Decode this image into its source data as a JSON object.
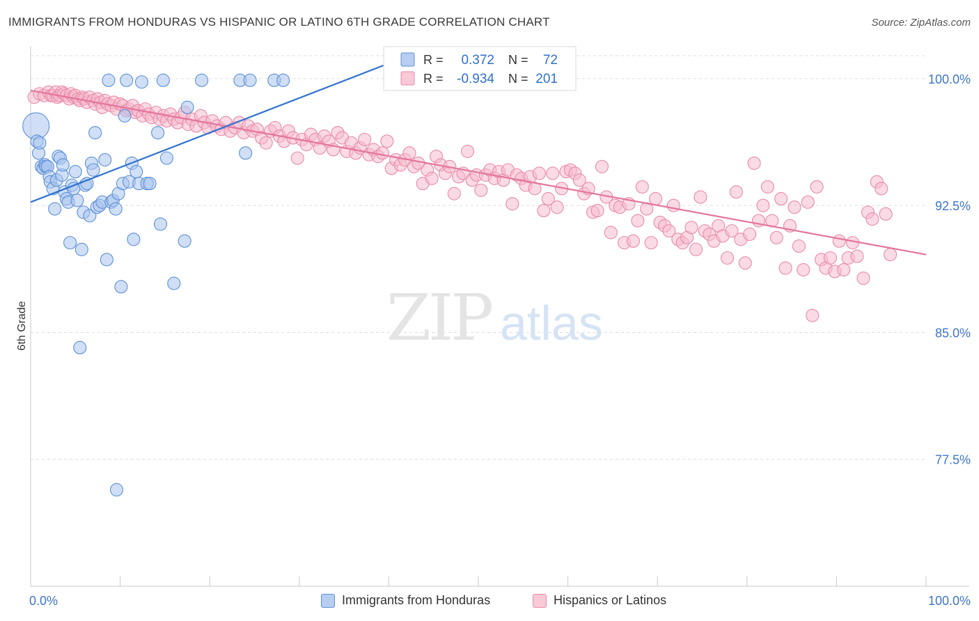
{
  "title": "IMMIGRANTS FROM HONDURAS VS HISPANIC OR LATINO 6TH GRADE CORRELATION CHART",
  "source": "Source: ZipAtlas.com",
  "watermark": {
    "zip": "ZIP",
    "atlas": "atlas"
  },
  "colors": {
    "blue_fill": "#a9c4ee",
    "blue_stroke": "#5b8fd6",
    "blue_line": "#2f72d0",
    "pink_fill": "#f6bccd",
    "pink_stroke": "#e98aa8",
    "pink_line": "#e4759c",
    "grid": "#dcdcdc",
    "tick_text": "#3e74c9"
  },
  "legend_box": {
    "rows": [
      {
        "r_label": "R =",
        "r_value": "0.372",
        "n_label": "N =",
        "n_value": "72"
      },
      {
        "r_label": "R =",
        "r_value": "-0.934",
        "n_label": "N =",
        "n_value": "201"
      }
    ]
  },
  "chart_data": {
    "type": "scatter",
    "title": "IMMIGRANTS FROM HONDURAS VS HISPANIC OR LATINO 6TH GRADE CORRELATION CHART",
    "xlabel": "",
    "ylabel": "6th Grade",
    "xlim": [
      0,
      100
    ],
    "ylim": [
      70.0,
      101.6
    ],
    "x_tick_labels": [
      "0.0%",
      "100.0%"
    ],
    "y_ticks": [
      77.5,
      85.0,
      92.5,
      100.0
    ],
    "y_tick_labels": [
      "77.5%",
      "85.0%",
      "92.5%",
      "100.0%"
    ],
    "grid": true,
    "legend_placement": "bottom",
    "series": [
      {
        "name": "Immigrants from Honduras",
        "color": "#5b8fd6",
        "trend": {
          "x": [
            0,
            40
          ],
          "y": [
            92.7,
            100.9
          ]
        },
        "points": [
          [
            0.6,
            97.2
          ],
          [
            0.7,
            96.3
          ],
          [
            0.9,
            95.6
          ],
          [
            1.0,
            96.2
          ],
          [
            1.2,
            94.8
          ],
          [
            1.4,
            94.7
          ],
          [
            1.6,
            94.9
          ],
          [
            1.7,
            94.8
          ],
          [
            1.9,
            94.8
          ],
          [
            2.1,
            94.2
          ],
          [
            2.2,
            93.9
          ],
          [
            2.5,
            93.5
          ],
          [
            2.7,
            92.3
          ],
          [
            2.9,
            94.0
          ],
          [
            3.1,
            95.4
          ],
          [
            3.3,
            95.3
          ],
          [
            3.5,
            94.3
          ],
          [
            3.6,
            94.9
          ],
          [
            3.8,
            93.3
          ],
          [
            4.0,
            92.9
          ],
          [
            4.2,
            92.7
          ],
          [
            4.4,
            90.3
          ],
          [
            4.6,
            93.7
          ],
          [
            4.8,
            93.5
          ],
          [
            5.0,
            94.5
          ],
          [
            5.2,
            92.8
          ],
          [
            5.5,
            84.1
          ],
          [
            5.7,
            89.9
          ],
          [
            5.9,
            92.1
          ],
          [
            6.1,
            93.7
          ],
          [
            6.3,
            93.8
          ],
          [
            6.6,
            91.9
          ],
          [
            6.8,
            95.0
          ],
          [
            7.0,
            94.6
          ],
          [
            7.2,
            96.8
          ],
          [
            7.4,
            92.4
          ],
          [
            7.7,
            92.5
          ],
          [
            8.0,
            92.7
          ],
          [
            8.3,
            95.2
          ],
          [
            8.5,
            89.3
          ],
          [
            8.7,
            99.9
          ],
          [
            9.0,
            92.7
          ],
          [
            9.2,
            92.8
          ],
          [
            9.5,
            92.3
          ],
          [
            9.6,
            75.7
          ],
          [
            9.8,
            93.2
          ],
          [
            10.1,
            87.7
          ],
          [
            10.3,
            93.8
          ],
          [
            10.5,
            97.8
          ],
          [
            10.7,
            99.9
          ],
          [
            11.0,
            93.9
          ],
          [
            11.3,
            95.0
          ],
          [
            11.5,
            90.5
          ],
          [
            11.8,
            94.5
          ],
          [
            12.1,
            93.8
          ],
          [
            12.4,
            99.8
          ],
          [
            13.0,
            93.8
          ],
          [
            13.3,
            93.8
          ],
          [
            14.2,
            96.8
          ],
          [
            14.5,
            91.4
          ],
          [
            14.8,
            99.9
          ],
          [
            15.2,
            95.3
          ],
          [
            16.0,
            87.9
          ],
          [
            17.2,
            90.4
          ],
          [
            17.5,
            98.3
          ],
          [
            19.1,
            99.9
          ],
          [
            23.4,
            99.9
          ],
          [
            24.0,
            95.6
          ],
          [
            24.5,
            99.9
          ],
          [
            27.2,
            99.9
          ],
          [
            28.2,
            99.9
          ],
          [
            40.5,
            99.9
          ]
        ]
      },
      {
        "name": "Hispanics or Latinos",
        "color": "#e98aa8",
        "trend": {
          "x": [
            0,
            100
          ],
          "y": [
            99.3,
            89.6
          ]
        },
        "points": [
          [
            0.4,
            98.9
          ],
          [
            1.0,
            99.1
          ],
          [
            1.5,
            99.0
          ],
          [
            2.0,
            99.2
          ],
          [
            2.3,
            99.0
          ],
          [
            2.5,
            99.0
          ],
          [
            2.8,
            99.2
          ],
          [
            3.0,
            98.9
          ],
          [
            3.2,
            99.0
          ],
          [
            3.5,
            99.2
          ],
          [
            3.7,
            99.1
          ],
          [
            4.0,
            99.0
          ],
          [
            4.3,
            98.8
          ],
          [
            4.5,
            99.1
          ],
          [
            4.8,
            98.9
          ],
          [
            5.0,
            99.0
          ],
          [
            5.3,
            98.8
          ],
          [
            5.5,
            98.7
          ],
          [
            5.8,
            98.9
          ],
          [
            6.0,
            98.8
          ],
          [
            6.3,
            98.6
          ],
          [
            6.6,
            98.9
          ],
          [
            7.0,
            98.7
          ],
          [
            7.2,
            98.5
          ],
          [
            7.5,
            98.8
          ],
          [
            7.8,
            98.6
          ],
          [
            8.0,
            98.3
          ],
          [
            8.3,
            98.7
          ],
          [
            8.6,
            98.5
          ],
          [
            9.0,
            98.4
          ],
          [
            9.3,
            98.6
          ],
          [
            9.6,
            98.2
          ],
          [
            10.0,
            98.5
          ],
          [
            10.3,
            98.4
          ],
          [
            10.7,
            98.1
          ],
          [
            11.0,
            98.2
          ],
          [
            11.4,
            98.4
          ],
          [
            11.7,
            98.0
          ],
          [
            12.0,
            98.1
          ],
          [
            12.5,
            97.8
          ],
          [
            12.8,
            98.2
          ],
          [
            13.2,
            97.9
          ],
          [
            13.5,
            97.7
          ],
          [
            14.0,
            98.0
          ],
          [
            14.4,
            97.6
          ],
          [
            14.8,
            97.8
          ],
          [
            15.2,
            97.5
          ],
          [
            15.6,
            97.9
          ],
          [
            16.0,
            97.6
          ],
          [
            16.4,
            97.4
          ],
          [
            16.8,
            97.7
          ],
          [
            17.2,
            98.0
          ],
          [
            17.6,
            97.3
          ],
          [
            18.0,
            97.6
          ],
          [
            18.5,
            97.2
          ],
          [
            19.0,
            97.8
          ],
          [
            19.4,
            97.4
          ],
          [
            19.8,
            97.1
          ],
          [
            20.3,
            97.5
          ],
          [
            20.8,
            97.2
          ],
          [
            21.3,
            97.0
          ],
          [
            21.8,
            97.4
          ],
          [
            22.3,
            96.9
          ],
          [
            22.8,
            97.1
          ],
          [
            23.3,
            97.4
          ],
          [
            23.8,
            96.8
          ],
          [
            24.3,
            97.2
          ],
          [
            24.8,
            96.9
          ],
          [
            25.3,
            97.0
          ],
          [
            25.8,
            96.5
          ],
          [
            26.3,
            96.2
          ],
          [
            26.8,
            96.9
          ],
          [
            27.3,
            97.1
          ],
          [
            27.8,
            96.6
          ],
          [
            28.3,
            96.3
          ],
          [
            28.8,
            96.9
          ],
          [
            29.3,
            96.5
          ],
          [
            29.8,
            95.3
          ],
          [
            30.3,
            96.4
          ],
          [
            30.8,
            96.1
          ],
          [
            31.3,
            96.7
          ],
          [
            31.8,
            96.4
          ],
          [
            32.3,
            95.9
          ],
          [
            32.8,
            96.6
          ],
          [
            33.3,
            96.3
          ],
          [
            33.8,
            95.8
          ],
          [
            34.3,
            96.8
          ],
          [
            34.8,
            96.5
          ],
          [
            35.3,
            95.7
          ],
          [
            35.8,
            96.2
          ],
          [
            36.3,
            95.6
          ],
          [
            36.8,
            95.9
          ],
          [
            37.3,
            96.4
          ],
          [
            37.8,
            95.5
          ],
          [
            38.3,
            95.8
          ],
          [
            38.8,
            95.4
          ],
          [
            39.3,
            95.6
          ],
          [
            39.8,
            96.3
          ],
          [
            40.3,
            94.7
          ],
          [
            40.8,
            95.2
          ],
          [
            41.3,
            94.9
          ],
          [
            41.8,
            95.2
          ],
          [
            42.3,
            95.6
          ],
          [
            42.8,
            94.8
          ],
          [
            43.3,
            95.0
          ],
          [
            43.8,
            93.8
          ],
          [
            44.3,
            94.6
          ],
          [
            44.8,
            94.1
          ],
          [
            45.3,
            95.4
          ],
          [
            45.8,
            94.9
          ],
          [
            46.3,
            94.4
          ],
          [
            46.8,
            94.8
          ],
          [
            47.3,
            93.2
          ],
          [
            47.8,
            94.2
          ],
          [
            48.3,
            94.4
          ],
          [
            48.8,
            95.7
          ],
          [
            49.3,
            94.0
          ],
          [
            49.8,
            94.3
          ],
          [
            50.3,
            93.4
          ],
          [
            50.8,
            94.3
          ],
          [
            51.3,
            94.6
          ],
          [
            51.8,
            94.1
          ],
          [
            52.3,
            94.5
          ],
          [
            52.8,
            94.0
          ],
          [
            53.3,
            94.6
          ],
          [
            53.8,
            92.6
          ],
          [
            54.3,
            94.3
          ],
          [
            54.8,
            94.1
          ],
          [
            55.3,
            93.7
          ],
          [
            55.8,
            94.2
          ],
          [
            56.3,
            93.5
          ],
          [
            56.8,
            94.4
          ],
          [
            57.3,
            92.2
          ],
          [
            57.8,
            92.9
          ],
          [
            58.3,
            94.4
          ],
          [
            58.8,
            92.4
          ],
          [
            59.3,
            93.5
          ],
          [
            59.8,
            94.5
          ],
          [
            60.3,
            94.6
          ],
          [
            60.8,
            94.4
          ],
          [
            61.3,
            94.0
          ],
          [
            61.8,
            93.2
          ],
          [
            62.3,
            93.5
          ],
          [
            62.8,
            92.1
          ],
          [
            63.3,
            92.2
          ],
          [
            63.8,
            94.8
          ],
          [
            64.3,
            93.0
          ],
          [
            64.8,
            90.9
          ],
          [
            65.3,
            92.5
          ],
          [
            65.8,
            92.4
          ],
          [
            66.3,
            90.3
          ],
          [
            66.8,
            92.6
          ],
          [
            67.3,
            90.4
          ],
          [
            67.8,
            91.6
          ],
          [
            68.3,
            93.6
          ],
          [
            68.8,
            92.3
          ],
          [
            69.3,
            90.3
          ],
          [
            69.8,
            92.9
          ],
          [
            70.3,
            91.5
          ],
          [
            70.8,
            91.3
          ],
          [
            71.3,
            91.0
          ],
          [
            71.8,
            92.5
          ],
          [
            72.3,
            90.5
          ],
          [
            72.8,
            90.3
          ],
          [
            73.3,
            90.6
          ],
          [
            73.8,
            91.2
          ],
          [
            74.3,
            89.9
          ],
          [
            74.8,
            93.0
          ],
          [
            75.3,
            91.0
          ],
          [
            75.8,
            90.8
          ],
          [
            76.3,
            90.4
          ],
          [
            76.8,
            91.3
          ],
          [
            77.3,
            90.7
          ],
          [
            77.8,
            89.4
          ],
          [
            78.3,
            91.0
          ],
          [
            78.8,
            93.3
          ],
          [
            79.3,
            90.5
          ],
          [
            79.8,
            89.1
          ],
          [
            80.3,
            90.8
          ],
          [
            80.8,
            95.0
          ],
          [
            81.3,
            91.6
          ],
          [
            81.8,
            92.5
          ],
          [
            82.3,
            93.6
          ],
          [
            82.8,
            91.6
          ],
          [
            83.3,
            90.6
          ],
          [
            83.8,
            92.9
          ],
          [
            84.3,
            88.8
          ],
          [
            84.8,
            91.3
          ],
          [
            85.3,
            92.4
          ],
          [
            85.8,
            90.1
          ],
          [
            86.3,
            88.7
          ],
          [
            86.8,
            92.7
          ],
          [
            87.3,
            86.0
          ],
          [
            87.8,
            93.6
          ],
          [
            88.3,
            89.3
          ],
          [
            88.8,
            88.8
          ],
          [
            89.3,
            89.4
          ],
          [
            89.8,
            88.6
          ],
          [
            90.3,
            90.4
          ],
          [
            90.8,
            88.7
          ],
          [
            91.3,
            89.4
          ],
          [
            91.8,
            90.3
          ],
          [
            92.3,
            89.5
          ],
          [
            93.0,
            88.2
          ],
          [
            93.5,
            92.1
          ],
          [
            94.0,
            91.7
          ],
          [
            94.5,
            93.9
          ],
          [
            95.0,
            93.5
          ],
          [
            95.5,
            92.0
          ],
          [
            96.0,
            89.6
          ]
        ]
      }
    ]
  },
  "bottom_legend": [
    {
      "label": "Immigrants from Honduras"
    },
    {
      "label": "Hispanics or Latinos"
    }
  ]
}
